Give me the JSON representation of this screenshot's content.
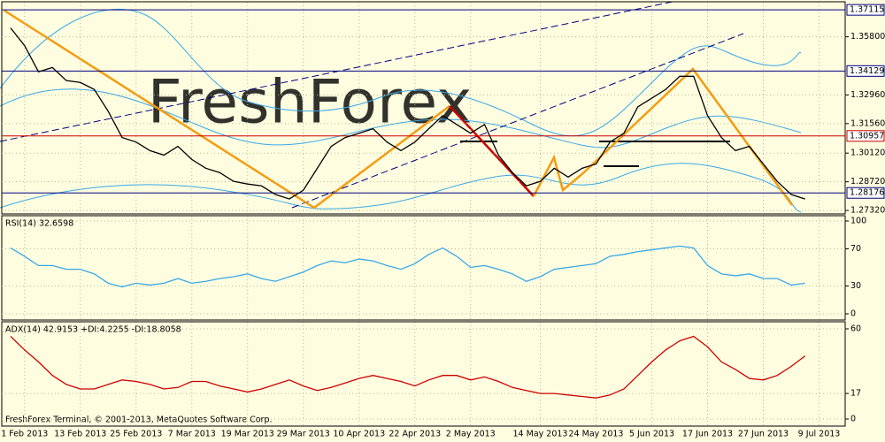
{
  "chart_data": [
    {
      "type": "line",
      "watermark": "FreshForex",
      "categories": [
        null,
        "1 Feb 2013",
        null,
        null,
        null,
        "13 Feb 2013",
        null,
        null,
        null,
        "25 Feb 2013",
        null,
        null,
        null,
        "7 Mar 2013",
        null,
        null,
        null,
        "19 Mar 2013",
        null,
        null,
        null,
        "29 Mar 2013",
        null,
        null,
        null,
        "10 Apr 2013",
        null,
        null,
        null,
        "22 Apr 2013",
        null,
        null,
        null,
        "2 May 2013",
        null,
        null,
        null,
        null,
        "14 May 2013",
        null,
        null,
        null,
        "24 May 2013",
        null,
        null,
        null,
        "5 Jun 2013",
        null,
        null,
        null,
        "17 Jun 2013",
        null,
        null,
        null,
        "27 Jun 2013",
        null,
        null,
        null,
        "9 Jul 2013"
      ],
      "values": [
        1.3623,
        1.3537,
        1.3409,
        1.343,
        1.3366,
        1.3357,
        1.3323,
        1.3216,
        1.3088,
        1.3066,
        1.3024,
        1.3002,
        1.3045,
        1.2981,
        1.2938,
        1.2917,
        1.2874,
        1.2861,
        1.2852,
        1.281,
        1.2788,
        1.2831,
        1.2938,
        1.3045,
        1.3088,
        1.3109,
        1.3131,
        1.3066,
        1.3024,
        1.3066,
        1.3131,
        1.3195,
        1.3152,
        1.3109,
        1.3152,
        1.3002,
        1.2917,
        1.2852,
        1.2874,
        1.2938,
        1.2895,
        1.2938,
        1.2959,
        1.3066,
        1.3109,
        1.3238,
        1.328,
        1.3323,
        1.3387,
        1.3387,
        1.3195,
        1.3088,
        1.3024,
        1.3045,
        1.2959,
        1.2874,
        1.281,
        1.2788,
        null
      ],
      "color": "#000000",
      "ylim": [
        1.2715,
        1.3751
      ],
      "yticks": [
        {
          "value": 1.358,
          "label": "1.35800"
        },
        {
          "value": 1.3296,
          "label": "1.32960"
        },
        {
          "value": 1.3156,
          "label": "1.31560"
        },
        {
          "value": 1.3012,
          "label": "1.30120"
        },
        {
          "value": 1.2872,
          "label": "1.28720"
        },
        {
          "value": 1.2732,
          "label": "1.27320"
        }
      ],
      "levels": [
        {
          "value": 1.37115,
          "color": "#000080"
        },
        {
          "value": 1.34129,
          "color": "#000080"
        },
        {
          "value": 1.30957,
          "color": "#cc0000"
        },
        {
          "value": 1.28176,
          "color": "#000080"
        }
      ],
      "grid": true
    },
    {
      "type": "line",
      "title": "RSI(14) 32.6598",
      "values": [
        71,
        62,
        52,
        52,
        48,
        48,
        43,
        33,
        29,
        33,
        31,
        33,
        38,
        33,
        35,
        38,
        40,
        43,
        38,
        35,
        40,
        45,
        52,
        57,
        55,
        59,
        57,
        52,
        48,
        54,
        64,
        71,
        62,
        50,
        52,
        48,
        43,
        35,
        40,
        48,
        50,
        52,
        54,
        62,
        64,
        67,
        69,
        71,
        73,
        71,
        52,
        43,
        41,
        43,
        38,
        38,
        31,
        33,
        null
      ],
      "color": "#3aa8e8",
      "ylim": [
        0,
        100
      ],
      "yticks": [
        0,
        30,
        70,
        100
      ],
      "grid": true
    },
    {
      "type": "line",
      "title": "ADX(14) 42.9153 +DI:4.2255 -DI:18.8058",
      "values": [
        55,
        46,
        38,
        29,
        23,
        20,
        20,
        23,
        26,
        25,
        23,
        20,
        21,
        25,
        25,
        22,
        20,
        18,
        20,
        23,
        26,
        22,
        19,
        21,
        24,
        27,
        29,
        27,
        25,
        22,
        26,
        29,
        29,
        26,
        28,
        25,
        21,
        19,
        17,
        17,
        16,
        15,
        14,
        16,
        20,
        29,
        38,
        46,
        52,
        55,
        48,
        38,
        33,
        27,
        26,
        29,
        35,
        42,
        null
      ],
      "color": "#cc0000",
      "ylim": [
        0,
        60
      ],
      "yticks": [
        0,
        17,
        60
      ],
      "grid": true
    }
  ],
  "footer": "FreshForex Terminal, © 2001-2013, MetaQuotes Software Corp."
}
